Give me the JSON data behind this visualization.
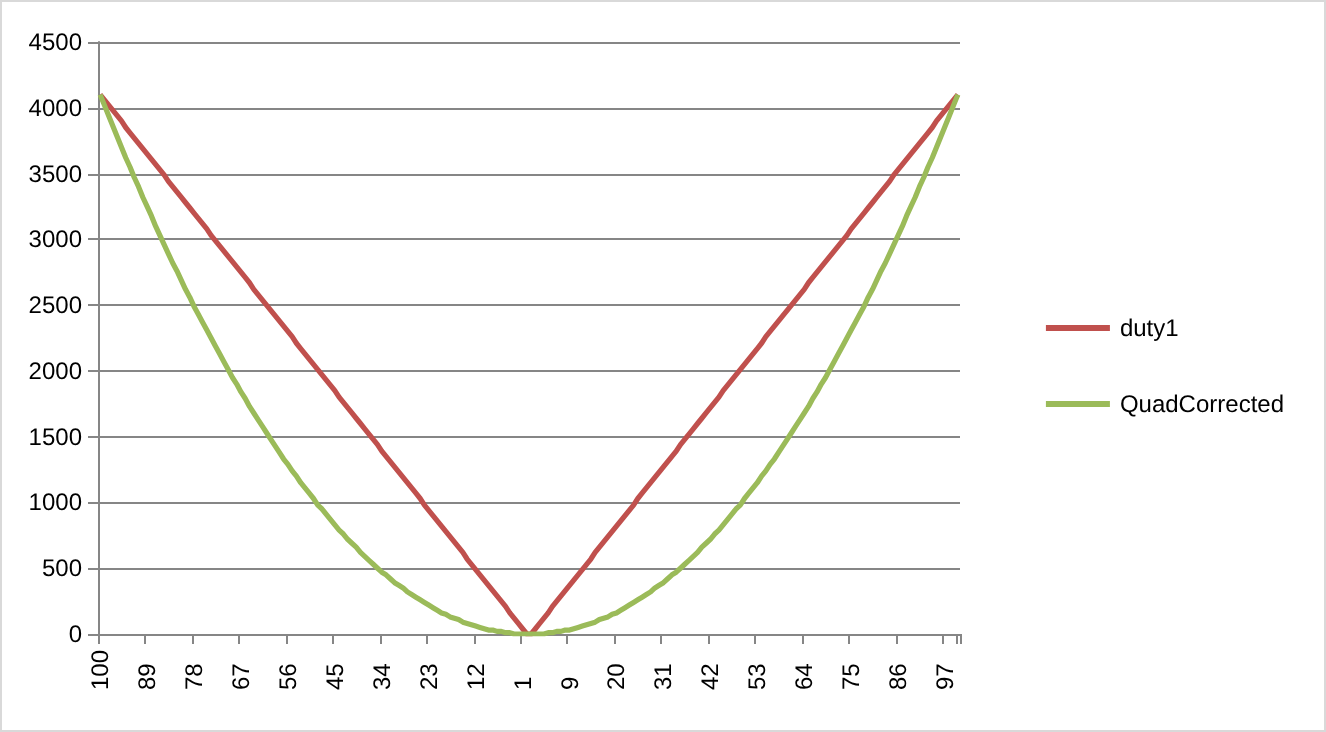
{
  "chart_data": {
    "type": "line",
    "categories": [
      "100",
      null,
      null,
      null,
      null,
      null,
      null,
      null,
      null,
      null,
      null,
      "89",
      null,
      null,
      null,
      null,
      null,
      null,
      null,
      null,
      null,
      null,
      "78",
      null,
      null,
      null,
      null,
      null,
      null,
      null,
      null,
      null,
      null,
      "67",
      null,
      null,
      null,
      null,
      null,
      null,
      null,
      null,
      null,
      null,
      "56",
      null,
      null,
      null,
      null,
      null,
      null,
      null,
      null,
      null,
      null,
      "45",
      null,
      null,
      null,
      null,
      null,
      null,
      null,
      null,
      null,
      null,
      "34",
      null,
      null,
      null,
      null,
      null,
      null,
      null,
      null,
      null,
      null,
      "23",
      null,
      null,
      null,
      null,
      null,
      null,
      null,
      null,
      null,
      null,
      "12",
      null,
      null,
      null,
      null,
      null,
      null,
      null,
      null,
      null,
      null,
      "1",
      null,
      null,
      null,
      null,
      null,
      null,
      null,
      null,
      null,
      null,
      "9",
      null,
      null,
      null,
      null,
      null,
      null,
      null,
      null,
      null,
      null,
      "20",
      null,
      null,
      null,
      null,
      null,
      null,
      null,
      null,
      null,
      null,
      "31",
      null,
      null,
      null,
      null,
      null,
      null,
      null,
      null,
      null,
      null,
      "42",
      null,
      null,
      null,
      null,
      null,
      null,
      null,
      null,
      null,
      null,
      "53",
      null,
      null,
      null,
      null,
      null,
      null,
      null,
      null,
      null,
      null,
      "64",
      null,
      null,
      null,
      null,
      null,
      null,
      null,
      null,
      null,
      null,
      "75",
      null,
      null,
      null,
      null,
      null,
      null,
      null,
      null,
      null,
      null,
      "86",
      null,
      null,
      null,
      null,
      null,
      null,
      null,
      null,
      null,
      null,
      "97",
      null,
      null,
      null
    ],
    "series": [
      {
        "name": "duty1",
        "color": "#c0504d",
        "values": [
          4100,
          4060,
          4020,
          3980,
          3940,
          3900,
          3850,
          3810,
          3770,
          3730,
          3690,
          3650,
          3610,
          3570,
          3530,
          3490,
          3440,
          3400,
          3360,
          3320,
          3280,
          3240,
          3200,
          3160,
          3120,
          3080,
          3030,
          2990,
          2950,
          2910,
          2870,
          2830,
          2790,
          2750,
          2710,
          2670,
          2620,
          2580,
          2540,
          2500,
          2460,
          2420,
          2380,
          2340,
          2300,
          2260,
          2210,
          2170,
          2130,
          2090,
          2050,
          2010,
          1970,
          1930,
          1890,
          1850,
          1800,
          1760,
          1720,
          1680,
          1640,
          1600,
          1560,
          1520,
          1480,
          1440,
          1390,
          1350,
          1310,
          1270,
          1230,
          1190,
          1150,
          1110,
          1070,
          1030,
          980,
          940,
          900,
          860,
          820,
          780,
          740,
          700,
          660,
          620,
          570,
          530,
          490,
          450,
          410,
          370,
          330,
          290,
          250,
          210,
          160,
          120,
          80,
          40,
          0,
          0,
          40,
          80,
          120,
          160,
          210,
          250,
          290,
          330,
          370,
          410,
          450,
          490,
          530,
          570,
          620,
          660,
          700,
          740,
          780,
          820,
          860,
          900,
          940,
          980,
          1030,
          1070,
          1110,
          1150,
          1190,
          1230,
          1270,
          1310,
          1350,
          1390,
          1440,
          1480,
          1520,
          1560,
          1600,
          1640,
          1680,
          1720,
          1760,
          1800,
          1850,
          1890,
          1930,
          1970,
          2010,
          2050,
          2090,
          2130,
          2170,
          2210,
          2260,
          2300,
          2340,
          2380,
          2420,
          2460,
          2500,
          2540,
          2580,
          2620,
          2670,
          2710,
          2750,
          2790,
          2830,
          2870,
          2910,
          2950,
          2990,
          3030,
          3080,
          3120,
          3160,
          3200,
          3240,
          3280,
          3320,
          3360,
          3400,
          3440,
          3490,
          3530,
          3570,
          3610,
          3650,
          3690,
          3730,
          3770,
          3810,
          3850,
          3900,
          3940,
          3980,
          4020,
          4060,
          4100
        ]
      },
      {
        "name": "QuadCorrected",
        "color": "#9bbb59",
        "values": [
          4100,
          4020,
          3940,
          3860,
          3780,
          3700,
          3620,
          3550,
          3470,
          3400,
          3320,
          3250,
          3180,
          3100,
          3030,
          2960,
          2890,
          2820,
          2760,
          2690,
          2620,
          2560,
          2490,
          2430,
          2370,
          2310,
          2250,
          2190,
          2130,
          2070,
          2010,
          1950,
          1900,
          1840,
          1790,
          1730,
          1680,
          1630,
          1580,
          1530,
          1480,
          1430,
          1380,
          1330,
          1290,
          1240,
          1200,
          1150,
          1110,
          1070,
          1030,
          980,
          950,
          910,
          870,
          830,
          790,
          760,
          720,
          690,
          660,
          620,
          590,
          560,
          530,
          500,
          470,
          450,
          420,
          390,
          370,
          350,
          320,
          300,
          280,
          260,
          240,
          220,
          200,
          180,
          160,
          150,
          130,
          120,
          110,
          90,
          80,
          70,
          60,
          50,
          40,
          30,
          30,
          20,
          20,
          10,
          10,
          0,
          0,
          0,
          0,
          0,
          0,
          0,
          0,
          10,
          10,
          20,
          20,
          30,
          30,
          40,
          50,
          60,
          70,
          80,
          90,
          110,
          120,
          130,
          150,
          160,
          180,
          200,
          220,
          240,
          260,
          280,
          300,
          320,
          350,
          370,
          390,
          420,
          450,
          470,
          500,
          530,
          560,
          590,
          620,
          660,
          690,
          720,
          760,
          790,
          830,
          870,
          910,
          950,
          980,
          1030,
          1070,
          1110,
          1150,
          1200,
          1240,
          1290,
          1330,
          1380,
          1430,
          1480,
          1530,
          1580,
          1630,
          1680,
          1730,
          1790,
          1840,
          1900,
          1950,
          2010,
          2070,
          2130,
          2190,
          2250,
          2310,
          2370,
          2430,
          2490,
          2560,
          2620,
          2690,
          2760,
          2820,
          2890,
          2960,
          3030,
          3100,
          3180,
          3250,
          3320,
          3400,
          3470,
          3550,
          3620,
          3700,
          3780,
          3860,
          3940,
          4020,
          4100
        ]
      }
    ],
    "ylim": [
      0,
      4500
    ],
    "yticks": [
      0,
      500,
      1000,
      1500,
      2000,
      2500,
      3000,
      3500,
      4000,
      4500
    ],
    "grid": "y",
    "legend": "right",
    "marker": "none"
  }
}
